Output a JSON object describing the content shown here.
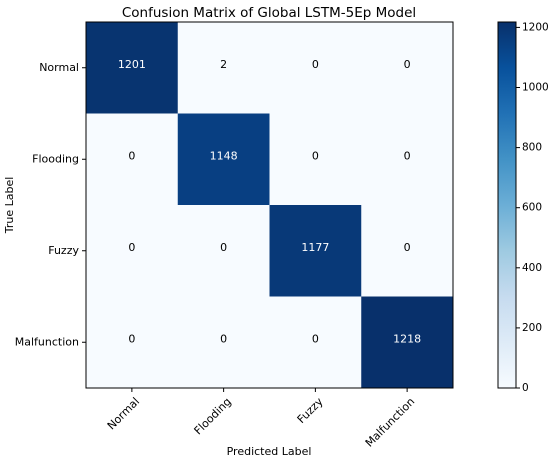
{
  "chart_data": {
    "type": "heatmap",
    "title": "Confusion Matrix of Global LSTM-5Ep Model",
    "xlabel": "Predicted Label",
    "ylabel": "True Label",
    "x_categories": [
      "Normal",
      "Flooding",
      "Fuzzy",
      "Malfunction"
    ],
    "y_categories": [
      "Normal",
      "Flooding",
      "Fuzzy",
      "Malfunction"
    ],
    "values": [
      [
        1201,
        2,
        0,
        0
      ],
      [
        0,
        1148,
        0,
        0
      ],
      [
        0,
        0,
        1177,
        0
      ],
      [
        0,
        0,
        0,
        1218
      ]
    ],
    "colorbar": {
      "range": [
        0,
        1218
      ],
      "ticks": [
        0,
        200,
        400,
        600,
        800,
        1000,
        1200
      ],
      "colormap": "Blues",
      "low_color": "#f7fbff",
      "high_color": "#08306b"
    },
    "grid": false
  }
}
